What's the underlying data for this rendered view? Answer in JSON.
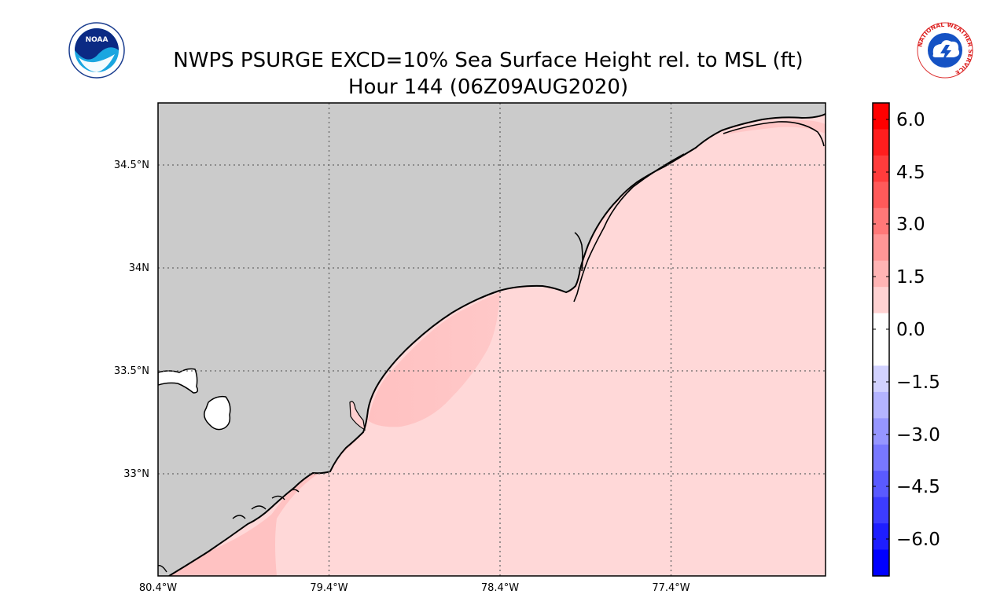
{
  "title": {
    "line1": "NWPS PSURGE EXCD=10% Sea Surface Height rel. to MSL (ft)",
    "line2": "Hour 144 (06Z09AUG2020)"
  },
  "logos": {
    "left": {
      "text": "NOAA"
    },
    "right": {
      "ring_text": "NATIONAL WEATHER SERVICE"
    }
  },
  "map": {
    "lon_ticks": [
      "80.4°W",
      "79.4°W",
      "78.4°W",
      "77.4°W"
    ],
    "lat_ticks": [
      "34.5°N",
      "34N",
      "33.5°N",
      "33°N"
    ],
    "colors": {
      "land": "#cbcbcb",
      "sea": "#ffd8d8",
      "surge_high": "#ffc4c4",
      "coast": "#000000"
    }
  },
  "colorbar": {
    "min": -6.75,
    "max": 6.75,
    "labels": [
      "6.0",
      "4.5",
      "3.0",
      "1.5",
      "0.0",
      "−1.5",
      "−3.0",
      "−4.5",
      "−6.0"
    ]
  }
}
